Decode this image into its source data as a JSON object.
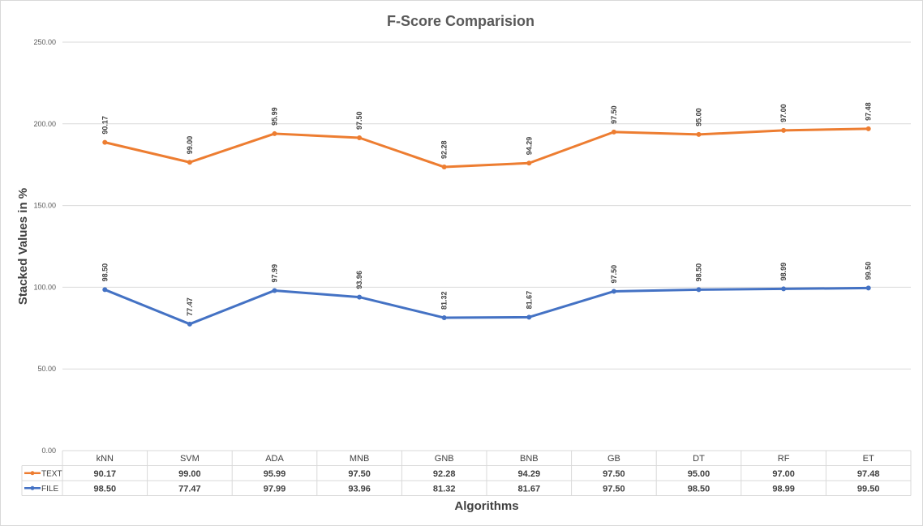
{
  "chart_data": {
    "type": "line",
    "title": "F-Score Comparision",
    "xlabel": "Algorithms",
    "ylabel": "Stacked Values in %",
    "ylim": [
      0,
      250
    ],
    "y_ticks": [
      "0.00",
      "50.00",
      "100.00",
      "150.00",
      "200.00",
      "250.00"
    ],
    "stacked": true,
    "grid": true,
    "legend": "data-table",
    "categories": [
      "kNN",
      "SVM",
      "ADA",
      "MNB",
      "GNB",
      "BNB",
      "GB",
      "DT",
      "RF",
      "ET"
    ],
    "series": [
      {
        "name": "TEXT",
        "color": "#ED7D31",
        "values": [
          90.17,
          99.0,
          95.99,
          97.5,
          92.28,
          94.29,
          97.5,
          95.0,
          97.0,
          97.48
        ],
        "labels": [
          "90.17",
          "99.00",
          "95.99",
          "97.50",
          "92.28",
          "94.29",
          "97.50",
          "95.00",
          "97.00",
          "97.48"
        ]
      },
      {
        "name": "FILE",
        "color": "#4472C4",
        "values": [
          98.5,
          77.47,
          97.99,
          93.96,
          81.32,
          81.67,
          97.5,
          98.5,
          98.99,
          99.5
        ],
        "labels": [
          "98.50",
          "77.47",
          "97.99",
          "93.96",
          "81.32",
          "81.67",
          "97.50",
          "98.50",
          "98.99",
          "99.50"
        ]
      }
    ]
  }
}
